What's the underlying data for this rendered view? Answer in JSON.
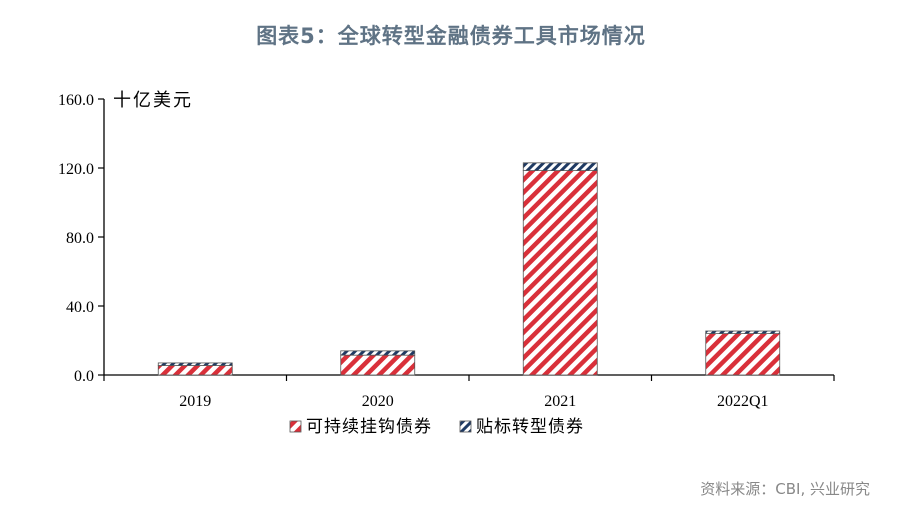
{
  "page": {
    "title": "图表5：全球转型金融债券工具市场情况",
    "source": "资料来源：CBI, 兴业研究"
  },
  "chart_data": {
    "type": "bar",
    "stacked": true,
    "categories": [
      "2019",
      "2020",
      "2021",
      "2022Q1"
    ],
    "series": [
      {
        "name": "可持续挂钩债券",
        "values": [
          5.5,
          11.5,
          118.5,
          24.0
        ],
        "color": "#d9303a",
        "pattern": "diagonal-red"
      },
      {
        "name": "贴标转型债券",
        "values": [
          1.5,
          2.5,
          4.5,
          1.5
        ],
        "color": "#1f3a63",
        "pattern": "diagonal-navy"
      }
    ],
    "ylabel": "十亿美元",
    "ylim": [
      0,
      160
    ],
    "yticks": [
      "0.0",
      "40.0",
      "80.0",
      "120.0",
      "160.0"
    ],
    "ytick_values": [
      0,
      40,
      80,
      120,
      160
    ],
    "grid": false,
    "legend_position": "bottom"
  }
}
